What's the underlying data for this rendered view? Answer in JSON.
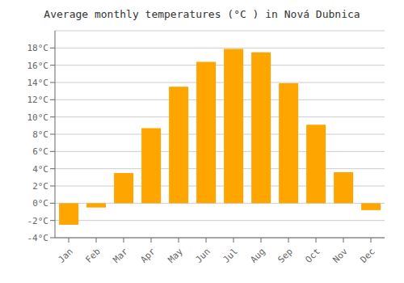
{
  "chart_data": {
    "type": "bar",
    "title": "Average monthly temperatures (°C ) in Nová Dubnica",
    "categories": [
      "Jan",
      "Feb",
      "Mar",
      "Apr",
      "May",
      "Jun",
      "Jul",
      "Aug",
      "Sep",
      "Oct",
      "Nov",
      "Dec"
    ],
    "values": [
      -2.5,
      -0.5,
      3.5,
      8.7,
      13.5,
      16.4,
      17.9,
      17.5,
      13.9,
      9.1,
      3.6,
      -0.8
    ],
    "color": "#FFA500",
    "ylim": [
      -4,
      20
    ],
    "yticks": [
      {
        "value": -4,
        "label": "-4°C"
      },
      {
        "value": -2,
        "label": "-2°C"
      },
      {
        "value": 0,
        "label": "0°C"
      },
      {
        "value": 2,
        "label": "2°C"
      },
      {
        "value": 4,
        "label": "4°C"
      },
      {
        "value": 6,
        "label": "6°C"
      },
      {
        "value": 8,
        "label": "8°C"
      },
      {
        "value": 10,
        "label": "10°C"
      },
      {
        "value": 12,
        "label": "12°C"
      },
      {
        "value": 14,
        "label": "14°C"
      },
      {
        "value": 16,
        "label": "16°C"
      },
      {
        "value": 18,
        "label": "18°C"
      }
    ],
    "grid": true
  }
}
